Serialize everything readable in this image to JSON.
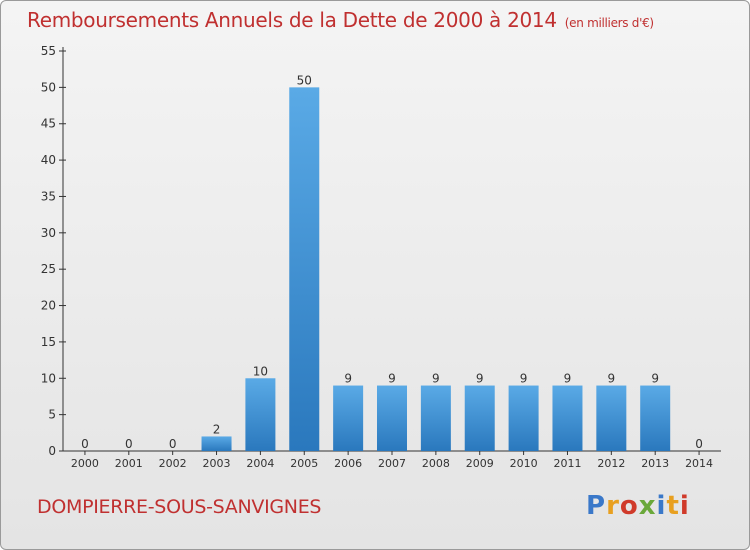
{
  "title": "Remboursements Annuels de la Dette de 2000 à 2014",
  "unit": "(en milliers d'€)",
  "town": "DOMPIERRE-SOUS-SANVIGNES",
  "logo": {
    "text": "Proxiti",
    "letters": [
      {
        "ch": "P",
        "color": "#3a78c9"
      },
      {
        "ch": "r",
        "color": "#e8a020"
      },
      {
        "ch": "o",
        "color": "#d03a2a"
      },
      {
        "ch": "x",
        "color": "#6aa83a"
      },
      {
        "ch": "i",
        "color": "#3a78c9"
      },
      {
        "ch": "t",
        "color": "#e8a020"
      },
      {
        "ch": "i",
        "color": "#d03a2a"
      }
    ]
  },
  "colors": {
    "title": "#c03030",
    "bar_light": "#5aaae6",
    "bar_dark": "#2a78bd",
    "axis": "#333333",
    "label": "#333333"
  },
  "chart_data": {
    "type": "bar",
    "categories": [
      "2000",
      "2001",
      "2002",
      "2003",
      "2004",
      "2005",
      "2006",
      "2007",
      "2008",
      "2009",
      "2010",
      "2011",
      "2012",
      "2013",
      "2014"
    ],
    "values": [
      0,
      0,
      0,
      2,
      10,
      50,
      9,
      9,
      9,
      9,
      9,
      9,
      9,
      9,
      0
    ],
    "title": "Remboursements Annuels de la Dette de 2000 à 2014",
    "ylim": [
      0,
      55
    ],
    "yticks": [
      0,
      5,
      10,
      15,
      20,
      25,
      30,
      35,
      40,
      45,
      50,
      55
    ],
    "grid": false,
    "data_labels": true
  }
}
